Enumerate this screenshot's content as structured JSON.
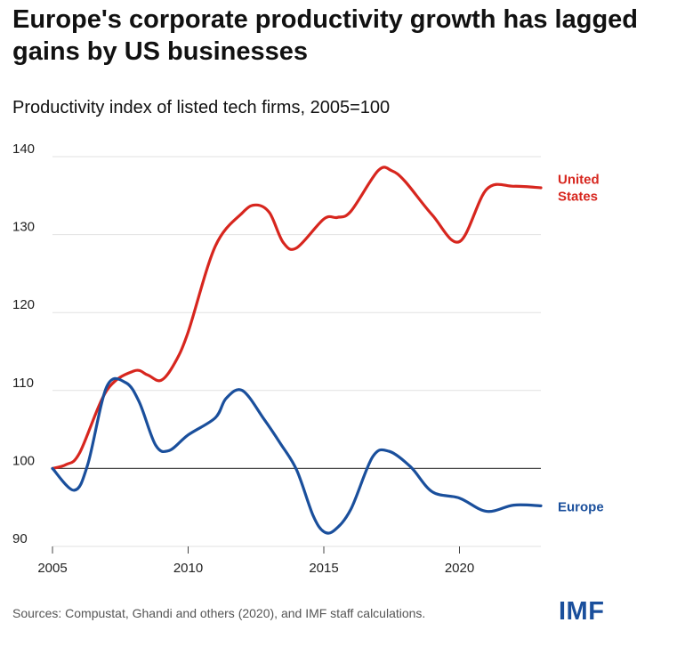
{
  "title": "Europe's corporate productivity growth has lagged gains by US businesses",
  "subtitle": "Productivity index of listed tech firms, 2005=100",
  "source": "Sources: Compustat, Ghandi and others (2020), and IMF staff calculations.",
  "logo": "IMF",
  "colors": {
    "us": "#d7261e",
    "europe": "#1a4f9c",
    "grid": "#e2e2e2",
    "baseline": "#444444"
  },
  "chart_data": {
    "type": "line",
    "title": "Productivity index of listed tech firms, 2005=100",
    "xlabel": "",
    "ylabel": "",
    "xlim": [
      2005,
      2023
    ],
    "ylim": [
      90,
      140
    ],
    "x_ticks": [
      2005,
      2010,
      2015,
      2020
    ],
    "y_ticks": [
      90,
      100,
      110,
      120,
      130,
      140
    ],
    "baseline": 100,
    "series": [
      {
        "name": "United States",
        "label_lines": [
          "United",
          "States"
        ],
        "x": [
          2005,
          2005.5,
          2006,
          2007,
          2008,
          2008.5,
          2009,
          2009.5,
          2010,
          2011,
          2012,
          2012.5,
          2013,
          2013.5,
          2014,
          2015,
          2015.5,
          2016,
          2017,
          2017.5,
          2018,
          2019,
          2020,
          2021,
          2022,
          2023
        ],
        "y": [
          100,
          100.5,
          102,
          110,
          112.5,
          112,
          111.3,
          113.5,
          117.5,
          128.5,
          132.8,
          133.8,
          132.8,
          129,
          128.3,
          132,
          132.2,
          133,
          138.2,
          138.2,
          136.8,
          132.5,
          129.1,
          135.8,
          136.2,
          136
        ]
      },
      {
        "name": "Europe",
        "label_lines": [
          "Europe"
        ],
        "x": [
          2005,
          2005.8,
          2006.3,
          2007,
          2007.7,
          2008.2,
          2008.8,
          2009.3,
          2010,
          2011,
          2011.4,
          2012,
          2012.8,
          2013.4,
          2014,
          2014.6,
          2015,
          2015.4,
          2016,
          2016.8,
          2017.4,
          2018.2,
          2019,
          2020,
          2021,
          2022,
          2023
        ],
        "y": [
          100,
          97.2,
          100.5,
          110.5,
          111,
          108.5,
          103,
          102.3,
          104.3,
          106.5,
          109,
          110,
          106.3,
          103.2,
          99.8,
          94,
          91.9,
          92.1,
          94.8,
          101.5,
          102.2,
          100.2,
          97,
          96.2,
          94.5,
          95.3,
          95.2
        ]
      }
    ]
  }
}
